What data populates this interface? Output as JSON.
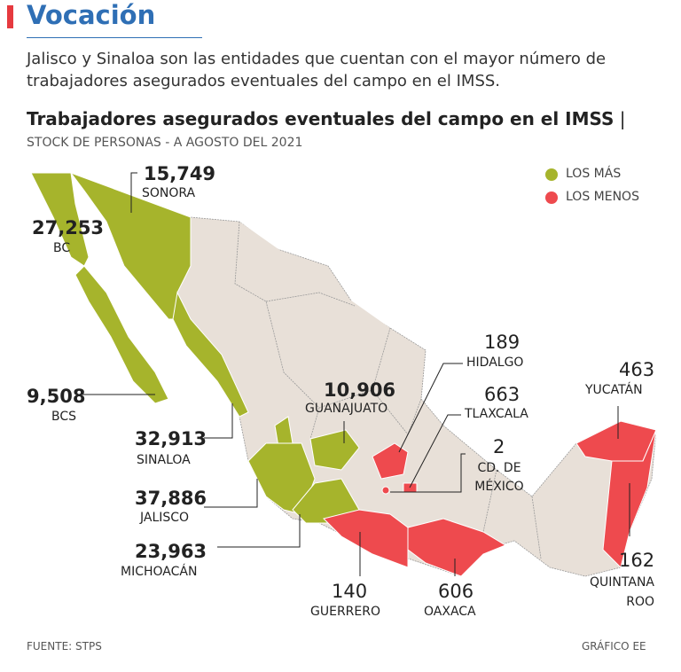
{
  "header": {
    "title": "Vocación",
    "subtitle": "Jalisco y Sinaloa son las entidades que cuentan con el mayor número de trabajadores asegurados eventuales del campo en el IMSS."
  },
  "map": {
    "title": "Trabajadores asegurados eventuales del campo en el IMSS",
    "subtitle": "STOCK DE PERSONAS - A AGOSTO DEL 2021",
    "legend": [
      {
        "label": "LOS MÁS",
        "color": "#a6b42c"
      },
      {
        "label": "LOS MENOS",
        "color": "#ee4a4e"
      }
    ],
    "states": [
      {
        "name": "SONORA",
        "value": "15,749"
      },
      {
        "name": "BC",
        "value": "27,253"
      },
      {
        "name": "BCS",
        "value": "9,508"
      },
      {
        "name": "SINALOA",
        "value": "32,913"
      },
      {
        "name": "JALISCO",
        "value": "37,886"
      },
      {
        "name": "MICHOACÁN",
        "value": "23,963"
      },
      {
        "name": "GUANAJUATO",
        "value": "10,906"
      },
      {
        "name": "HIDALGO",
        "value": "189"
      },
      {
        "name": "TLAXCALA",
        "value": "663"
      },
      {
        "name": "CD. DE MÉXICO",
        "value": "2"
      },
      {
        "name": "GUERRERO",
        "value": "140"
      },
      {
        "name": "OAXACA",
        "value": "606"
      },
      {
        "name": "YUCATÁN",
        "value": "463"
      },
      {
        "name": "QUINTANA ROO",
        "value": "162"
      }
    ]
  },
  "footer": {
    "source": "FUENTE: STPS",
    "credit": "GRÁFICO EE"
  }
}
